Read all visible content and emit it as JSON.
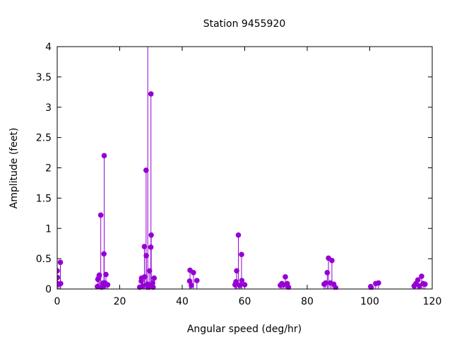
{
  "chart_data": {
    "type": "stem",
    "title": "Station 9455920",
    "xlabel": "Angular speed (deg/hr)",
    "ylabel": "Amplitude (feet)",
    "xlim": [
      0,
      120
    ],
    "ylim": [
      0,
      4
    ],
    "xticks": [
      "0",
      "20",
      "40",
      "60",
      "80",
      "100",
      "120"
    ],
    "xtick_values": [
      0,
      20,
      40,
      60,
      80,
      100,
      120
    ],
    "yticks": [
      "0",
      "0.5",
      "1",
      "1.5",
      "2",
      "2.5",
      "3",
      "3.5",
      "4"
    ],
    "ytick_values": [
      0,
      0.5,
      1,
      1.5,
      2,
      2.5,
      3,
      3.5,
      4
    ],
    "grid": false,
    "color": "#9400d3",
    "points": [
      [
        0,
        0.3
      ],
      [
        0.04,
        0.09
      ],
      [
        0.08,
        0.19
      ],
      [
        0.54,
        0.08
      ],
      [
        1.02,
        0.44
      ],
      [
        1.1,
        0.09
      ],
      [
        12.85,
        0.04
      ],
      [
        13.0,
        0.16
      ],
      [
        13.4,
        0.21
      ],
      [
        13.47,
        0.23
      ],
      [
        13.94,
        1.22
      ],
      [
        14.25,
        0.03
      ],
      [
        14.5,
        0.09
      ],
      [
        14.7,
        0.1
      ],
      [
        14.96,
        0.58
      ],
      [
        15.0,
        0.06
      ],
      [
        15.04,
        2.2
      ],
      [
        15.3,
        0.1
      ],
      [
        15.59,
        0.24
      ],
      [
        16.14,
        0.07
      ],
      [
        26.4,
        0.03
      ],
      [
        26.9,
        0.13
      ],
      [
        27.0,
        0.18
      ],
      [
        27.42,
        0.05
      ],
      [
        27.9,
        0.7
      ],
      [
        27.97,
        0.2
      ],
      [
        28.44,
        1.96
      ],
      [
        28.51,
        0.55
      ],
      [
        28.9,
        0.08
      ],
      [
        28.98,
        4.5
      ],
      [
        29.07,
        0.02
      ],
      [
        29.46,
        0.05
      ],
      [
        29.53,
        0.3
      ],
      [
        29.96,
        0.69
      ],
      [
        30.0,
        3.22
      ],
      [
        30.04,
        0.05
      ],
      [
        30.08,
        0.89
      ],
      [
        30.54,
        0.1
      ],
      [
        31.02,
        0.18
      ],
      [
        30.7,
        0.03
      ],
      [
        42.38,
        0.13
      ],
      [
        42.5,
        0.31
      ],
      [
        42.93,
        0.06
      ],
      [
        43.6,
        0.27
      ],
      [
        44.7,
        0.14
      ],
      [
        56.9,
        0.07
      ],
      [
        57.2,
        0.12
      ],
      [
        57.42,
        0.3
      ],
      [
        57.97,
        0.89
      ],
      [
        58.4,
        0.06
      ],
      [
        58.98,
        0.57
      ],
      [
        59.07,
        0.14
      ],
      [
        60.0,
        0.07
      ],
      [
        71.4,
        0.06
      ],
      [
        71.9,
        0.09
      ],
      [
        72.4,
        0.07
      ],
      [
        73.0,
        0.2
      ],
      [
        73.6,
        0.09
      ],
      [
        74.0,
        0.03
      ],
      [
        85.4,
        0.08
      ],
      [
        85.9,
        0.1
      ],
      [
        86.41,
        0.27
      ],
      [
        86.8,
        0.51
      ],
      [
        87.4,
        0.1
      ],
      [
        87.9,
        0.47
      ],
      [
        88.5,
        0.08
      ],
      [
        89.1,
        0.02
      ],
      [
        100.3,
        0.04
      ],
      [
        100.5,
        0.02
      ],
      [
        101.9,
        0.09
      ],
      [
        102.8,
        0.1
      ],
      [
        114.2,
        0.05
      ],
      [
        114.8,
        0.09
      ],
      [
        115.4,
        0.15
      ],
      [
        115.9,
        0.05
      ],
      [
        116.6,
        0.21
      ],
      [
        117.1,
        0.09
      ],
      [
        117.7,
        0.08
      ]
    ]
  }
}
